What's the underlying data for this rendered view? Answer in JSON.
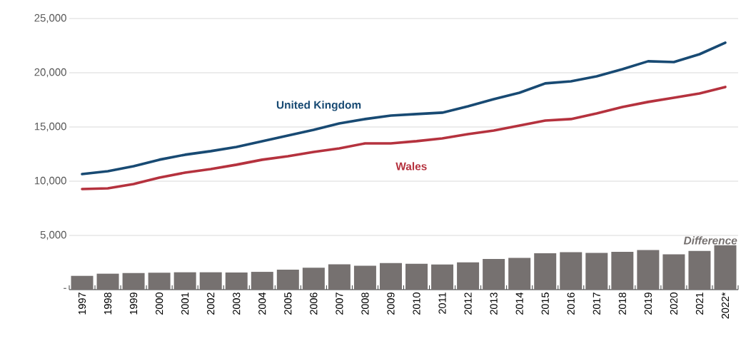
{
  "chart_data": {
    "type": "line",
    "categories": [
      "1997",
      "1998",
      "1999",
      "2000",
      "2001",
      "2002",
      "2003",
      "2004",
      "2005",
      "2006",
      "2007",
      "2008",
      "2009",
      "2010",
      "2011",
      "2012",
      "2013",
      "2014",
      "2015",
      "2016",
      "2017",
      "2018",
      "2019",
      "2020",
      "2021",
      "2022*"
    ],
    "series": [
      {
        "name": "Difference",
        "type": "bar",
        "color": "#767170",
        "values": [
          1270,
          1470,
          1530,
          1560,
          1600,
          1600,
          1580,
          1640,
          1840,
          2020,
          2330,
          2200,
          2450,
          2390,
          2320,
          2520,
          2830,
          2920,
          3360,
          3450,
          3380,
          3490,
          3650,
          3250,
          3560,
          4090
        ]
      },
      {
        "name": "United Kingdom",
        "color": "#184a73",
        "values": [
          10660,
          10920,
          11380,
          11980,
          12440,
          12770,
          13160,
          13690,
          14210,
          14740,
          15330,
          15730,
          16050,
          16190,
          16320,
          16910,
          17570,
          18160,
          19020,
          19210,
          19670,
          20330,
          21060,
          20990,
          21710,
          22770
        ]
      },
      {
        "name": "Wales",
        "color": "#b5323e",
        "values": [
          9280,
          9340,
          9740,
          10330,
          10790,
          11120,
          11520,
          11980,
          12300,
          12700,
          13030,
          13490,
          13490,
          13690,
          13950,
          14340,
          14670,
          15130,
          15590,
          15730,
          16250,
          16840,
          17310,
          17700,
          18090,
          18690
        ]
      }
    ],
    "ylim": [
      0,
      25000
    ],
    "yticks": [
      {
        "value": 0,
        "label": "-"
      },
      {
        "value": 5000,
        "label": "5,000"
      },
      {
        "value": 10000,
        "label": "10,000"
      },
      {
        "value": 15000,
        "label": "15,000"
      },
      {
        "value": 20000,
        "label": "20,000"
      },
      {
        "value": 25000,
        "label": "25,000"
      }
    ],
    "grid": "y",
    "legend": false,
    "line_style": "solid",
    "marker": "none"
  }
}
